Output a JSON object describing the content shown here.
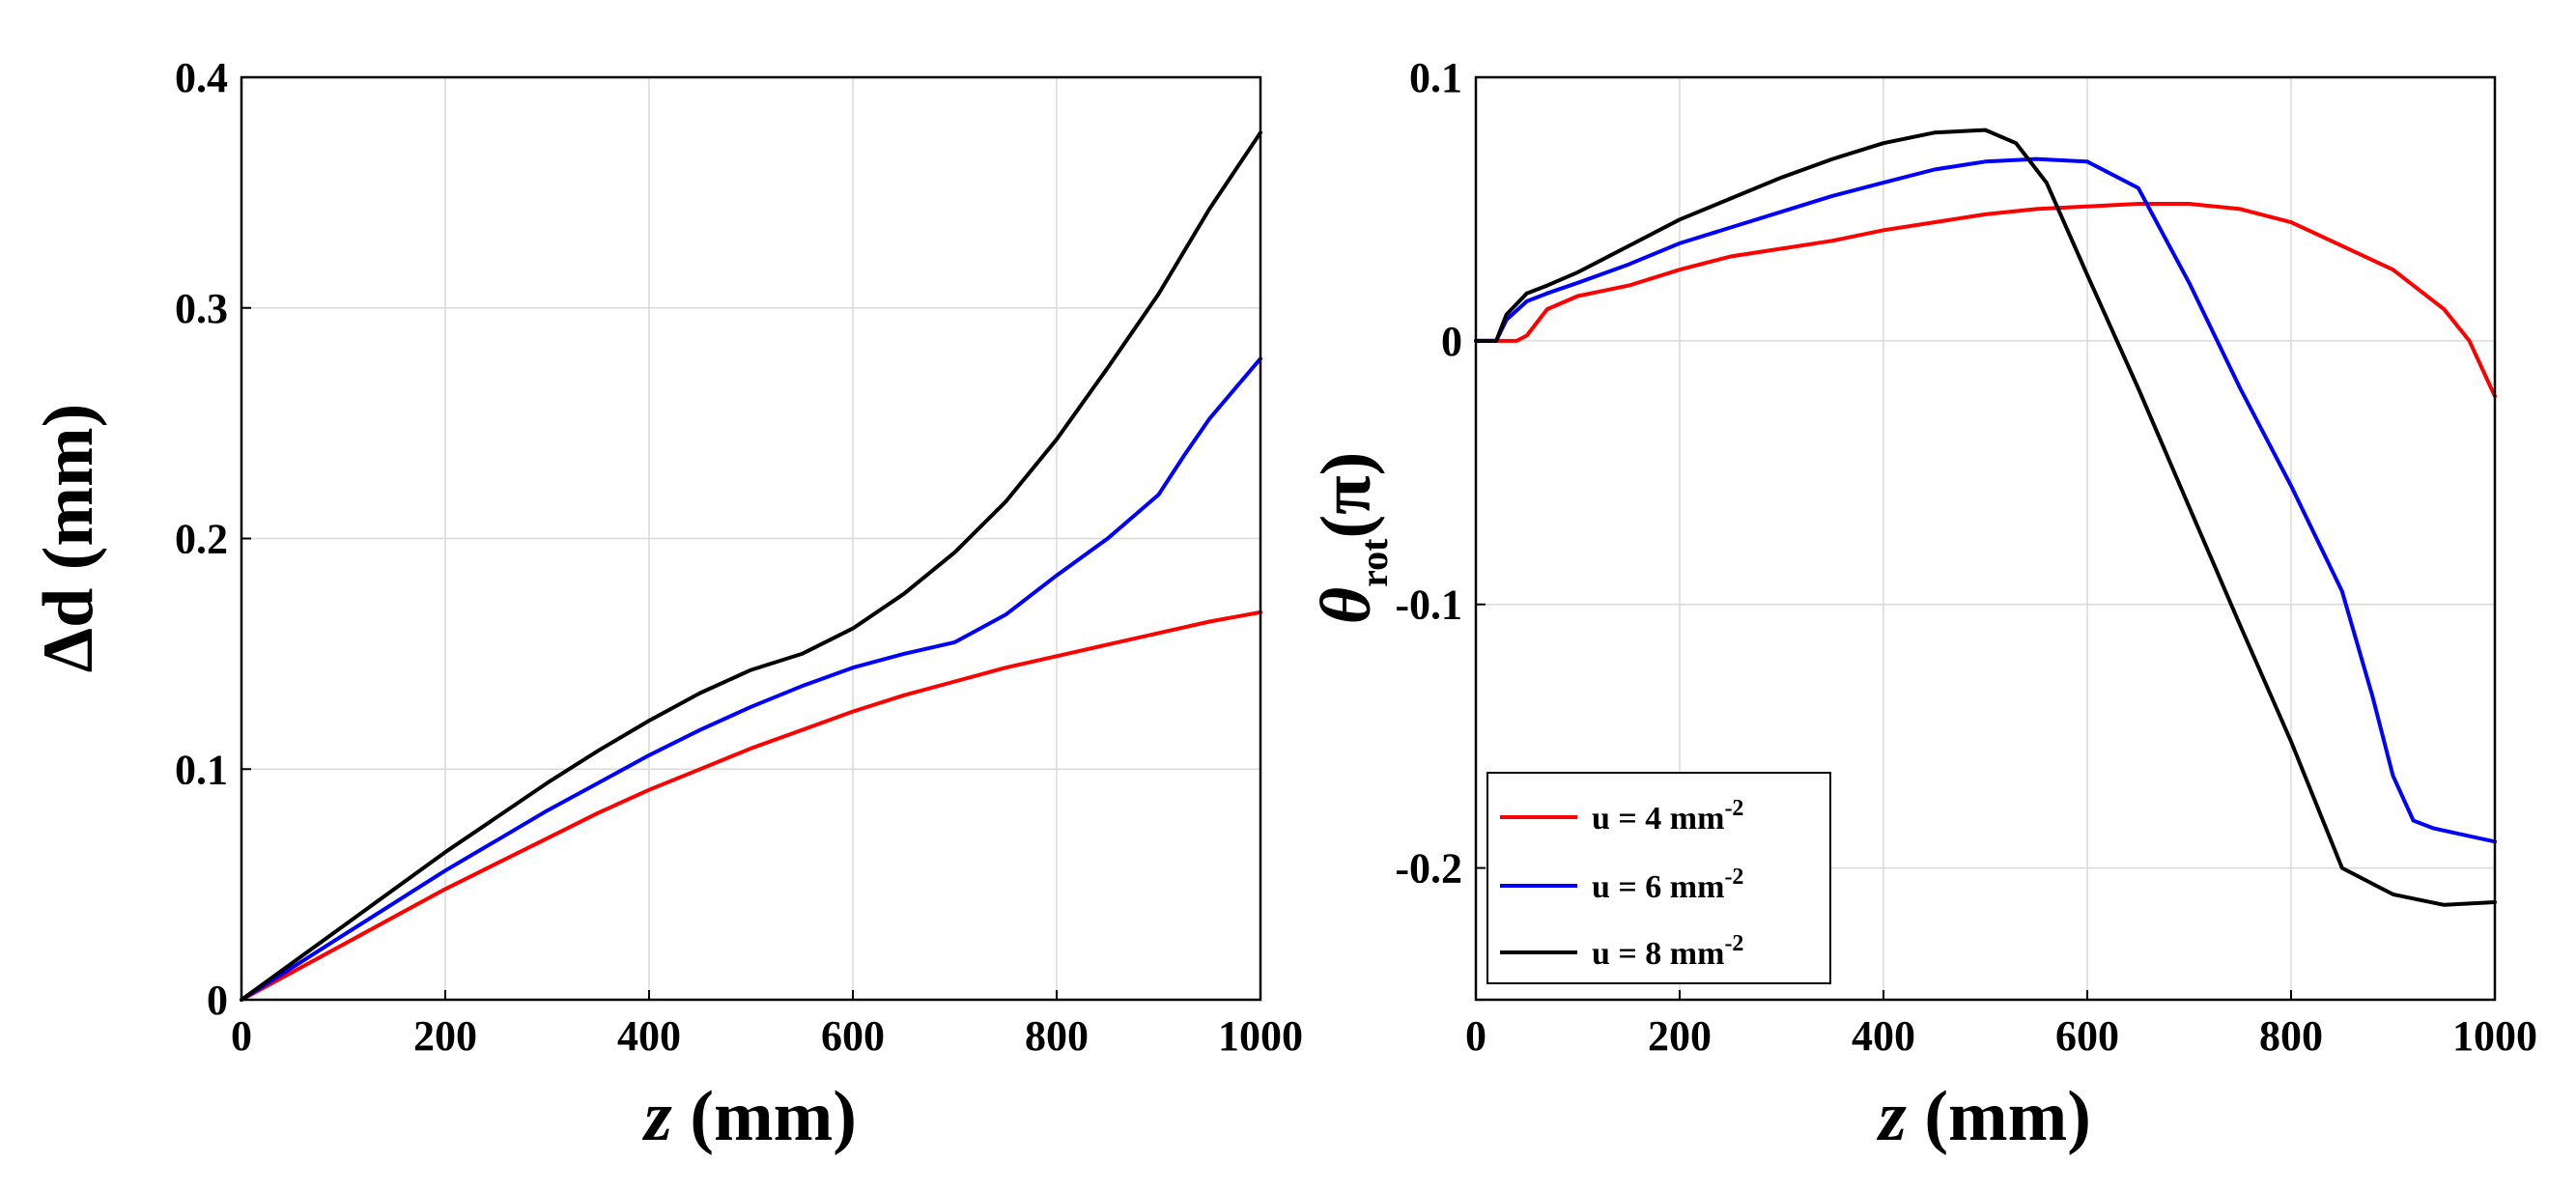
{
  "chart_data": [
    {
      "type": "line",
      "panel": "left",
      "title": "",
      "xlabel": {
        "italic": "z",
        "rest": " (mm)"
      },
      "ylabel": "Δd (mm)",
      "xlim": [
        0,
        1000
      ],
      "ylim": [
        0,
        0.4
      ],
      "xticks": [
        0,
        200,
        400,
        600,
        800,
        1000
      ],
      "xtick_labels": [
        "0",
        "200",
        "400",
        "600",
        "800",
        "1000"
      ],
      "yticks": [
        0,
        0.1,
        0.2,
        0.3,
        0.4
      ],
      "ytick_labels": [
        "0",
        "0.1",
        "0.2",
        "0.3",
        "0.4"
      ],
      "grid": true,
      "series": [
        {
          "name": "u = 4 mm-2",
          "color": "#ff0000",
          "x": [
            0,
            50,
            100,
            150,
            200,
            250,
            300,
            350,
            400,
            450,
            500,
            550,
            600,
            650,
            700,
            750,
            800,
            850,
            900,
            950,
            1000
          ],
          "y": [
            0,
            0.012,
            0.024,
            0.036,
            0.048,
            0.059,
            0.07,
            0.081,
            0.091,
            0.1,
            0.109,
            0.117,
            0.125,
            0.132,
            0.138,
            0.144,
            0.149,
            0.154,
            0.159,
            0.164,
            0.168
          ]
        },
        {
          "name": "u = 6 mm-2",
          "color": "#0000ff",
          "x": [
            0,
            50,
            100,
            150,
            200,
            250,
            300,
            350,
            400,
            450,
            500,
            550,
            600,
            650,
            700,
            750,
            800,
            850,
            900,
            925,
            950,
            975,
            1000
          ],
          "y": [
            0,
            0.014,
            0.028,
            0.042,
            0.056,
            0.069,
            0.082,
            0.094,
            0.106,
            0.117,
            0.127,
            0.136,
            0.144,
            0.15,
            0.155,
            0.167,
            0.184,
            0.2,
            0.219,
            0.236,
            0.252,
            0.265,
            0.278
          ]
        },
        {
          "name": "u = 8 mm-2",
          "color": "#000000",
          "x": [
            0,
            50,
            100,
            150,
            200,
            250,
            300,
            350,
            400,
            450,
            500,
            550,
            600,
            650,
            700,
            750,
            800,
            850,
            900,
            950,
            1000
          ],
          "y": [
            0,
            0.016,
            0.032,
            0.048,
            0.064,
            0.079,
            0.094,
            0.108,
            0.121,
            0.133,
            0.143,
            0.15,
            0.161,
            0.176,
            0.194,
            0.216,
            0.243,
            0.274,
            0.306,
            0.343,
            0.376
          ]
        }
      ]
    },
    {
      "type": "line",
      "panel": "right",
      "title": "",
      "xlabel": {
        "italic": "z",
        "rest": " (mm)"
      },
      "ylabel": {
        "main": "θ",
        "sub": "rot",
        "rest": "(π)"
      },
      "xlim": [
        0,
        1000
      ],
      "ylim": [
        -0.25,
        0.1
      ],
      "xticks": [
        0,
        200,
        400,
        600,
        800,
        1000
      ],
      "xtick_labels": [
        "0",
        "200",
        "400",
        "600",
        "800",
        "1000"
      ],
      "yticks": [
        -0.2,
        -0.1,
        0,
        0.1
      ],
      "ytick_labels": [
        "-0.2",
        "-0.1",
        "0",
        "0.1"
      ],
      "grid": true,
      "legend_position": "bottom-left",
      "series": [
        {
          "name": "u = 4 mm-2",
          "color": "#ff0000",
          "x": [
            0,
            40,
            50,
            70,
            100,
            150,
            200,
            250,
            300,
            350,
            400,
            450,
            500,
            550,
            600,
            650,
            700,
            750,
            800,
            850,
            900,
            950,
            975,
            1000
          ],
          "y": [
            0,
            0,
            0.002,
            0.012,
            0.017,
            0.021,
            0.027,
            0.032,
            0.035,
            0.038,
            0.042,
            0.045,
            0.048,
            0.05,
            0.051,
            0.052,
            0.052,
            0.05,
            0.045,
            0.036,
            0.027,
            0.012,
            0.0,
            -0.021
          ]
        },
        {
          "name": "u = 6 mm-2",
          "color": "#0000ff",
          "x": [
            0,
            20,
            30,
            50,
            70,
            100,
            150,
            200,
            250,
            300,
            350,
            400,
            450,
            500,
            550,
            600,
            650,
            700,
            750,
            800,
            850,
            880,
            900,
            920,
            940,
            1000
          ],
          "y": [
            0,
            0,
            0.008,
            0.015,
            0.018,
            0.022,
            0.029,
            0.037,
            0.043,
            0.049,
            0.055,
            0.06,
            0.065,
            0.068,
            0.069,
            0.068,
            0.058,
            0.022,
            -0.018,
            -0.055,
            -0.095,
            -0.135,
            -0.165,
            -0.182,
            -0.185,
            -0.19
          ]
        },
        {
          "name": "u = 8 mm-2",
          "color": "#000000",
          "x": [
            0,
            20,
            30,
            50,
            70,
            100,
            150,
            200,
            250,
            300,
            350,
            400,
            450,
            500,
            530,
            560,
            600,
            650,
            700,
            750,
            800,
            850,
            900,
            950,
            1000
          ],
          "y": [
            0,
            0,
            0.01,
            0.018,
            0.021,
            0.026,
            0.036,
            0.046,
            0.054,
            0.062,
            0.069,
            0.075,
            0.079,
            0.08,
            0.075,
            0.06,
            0.025,
            -0.018,
            -0.063,
            -0.108,
            -0.152,
            -0.2,
            -0.21,
            -0.214,
            -0.213
          ]
        }
      ]
    }
  ],
  "legend": {
    "entries": [
      {
        "prefix": "u = 4 mm",
        "sup": "-2",
        "color": "#ff0000"
      },
      {
        "prefix": "u = 6 mm",
        "sup": "-2",
        "color": "#0000ff"
      },
      {
        "prefix": "u = 8 mm",
        "sup": "-2",
        "color": "#000000"
      }
    ]
  }
}
